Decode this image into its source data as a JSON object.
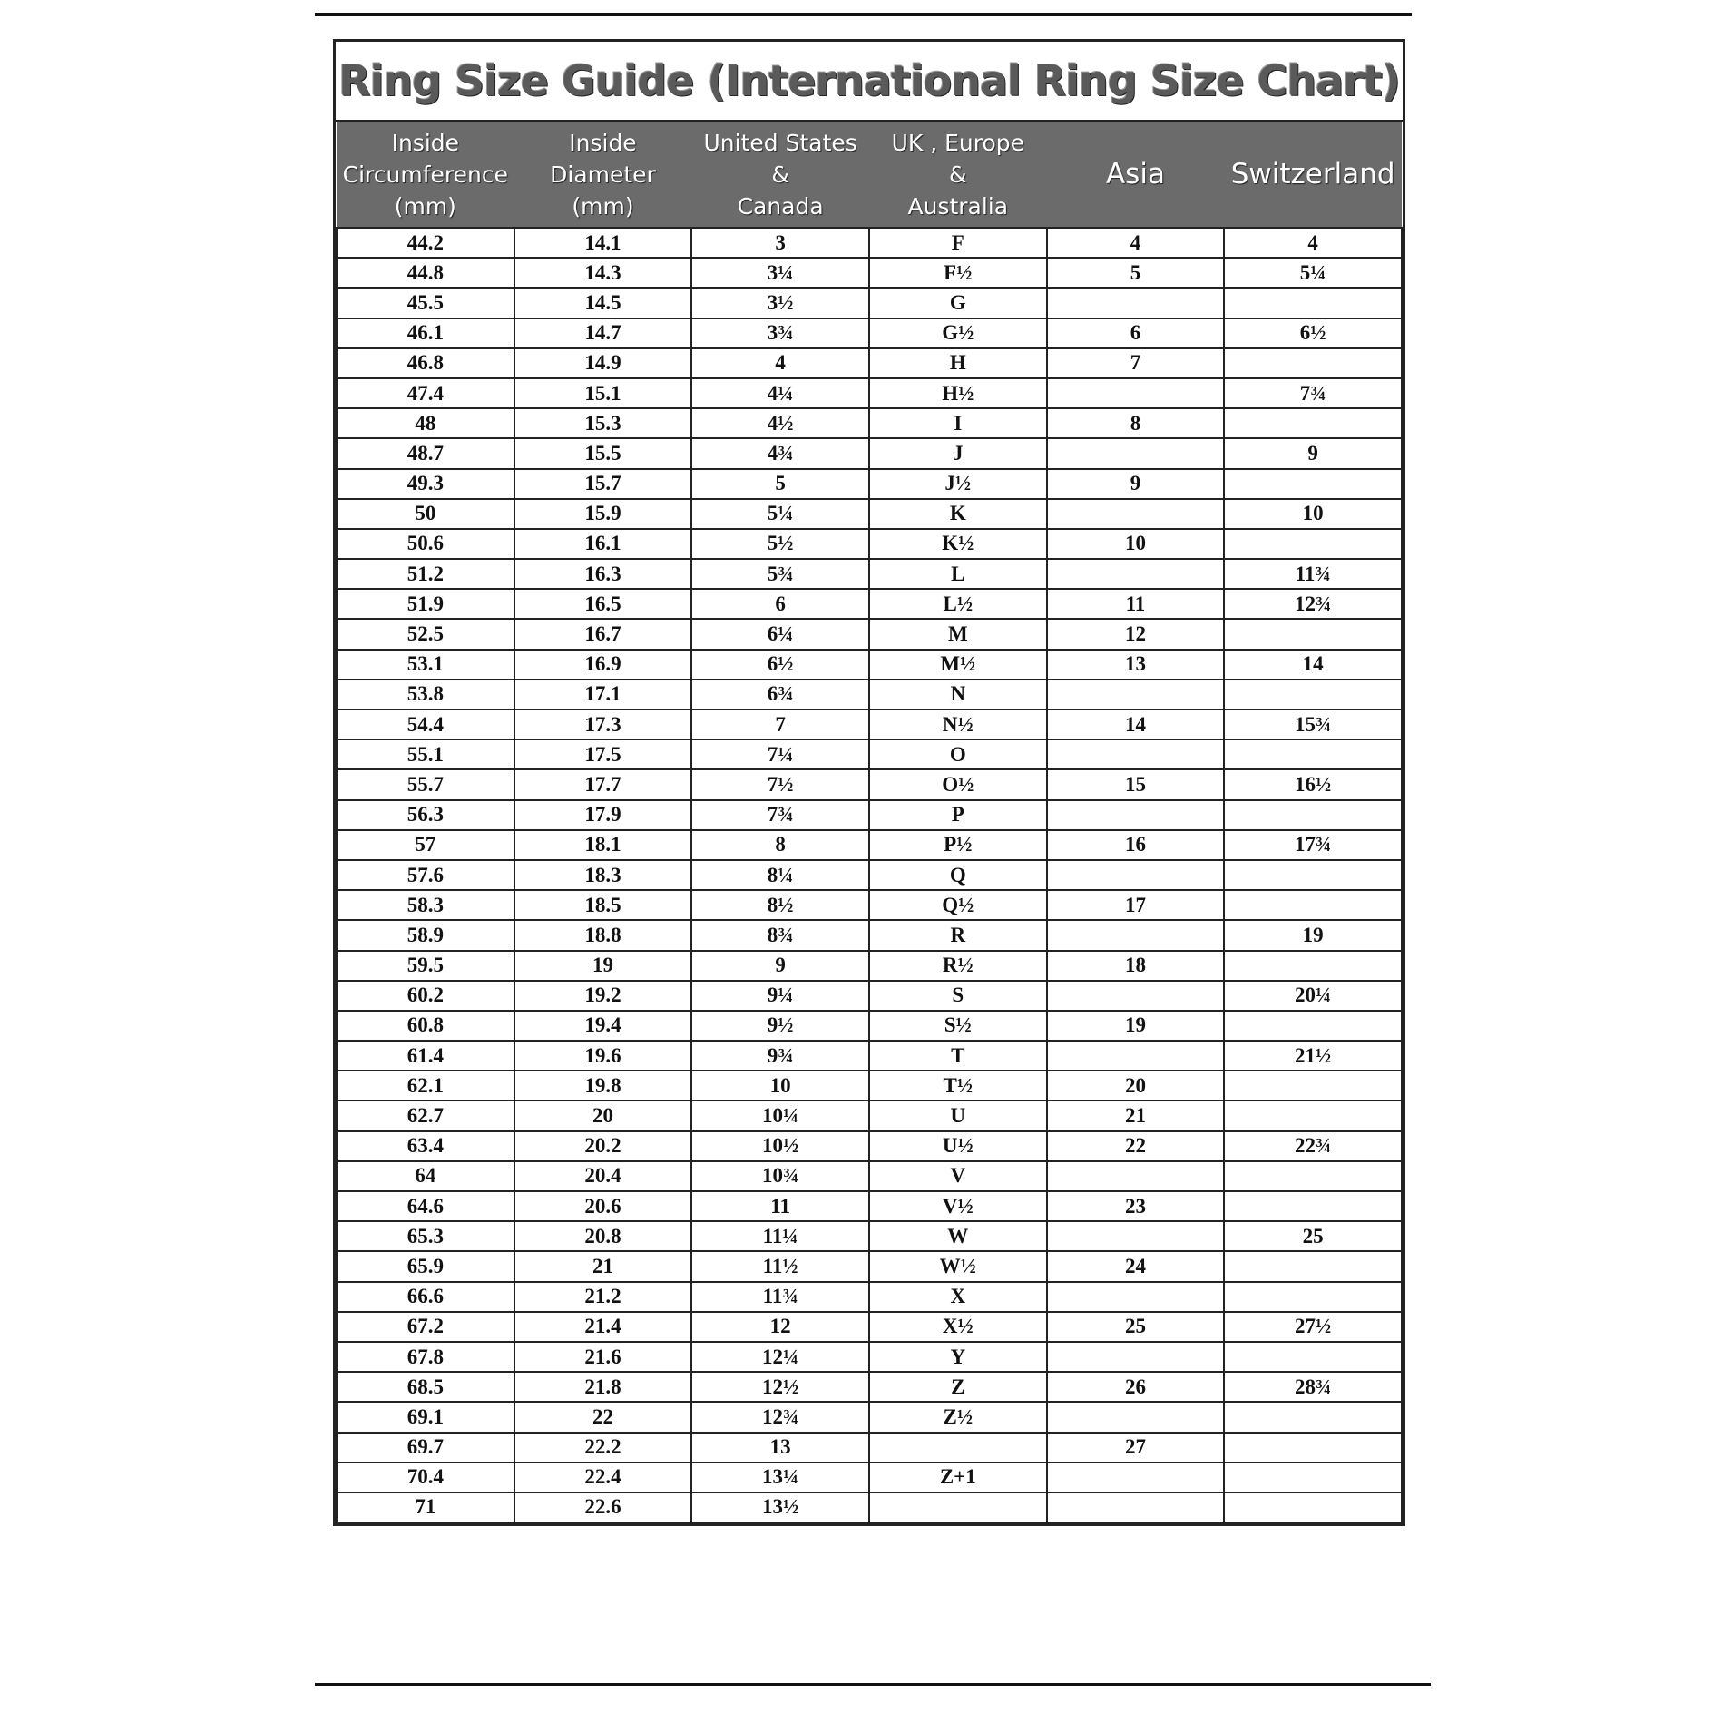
{
  "title": "Ring  Size  Guide (International Ring Size Chart)",
  "columns": [
    "Inside\nCircumference\n(mm)",
    "Inside\nDiameter\n(mm)",
    "United States\n&\nCanada",
    "UK , Europe\n&\nAustralia",
    "Asia",
    "Switzerland"
  ],
  "rows": [
    [
      "44.2",
      "14.1",
      "3",
      "F",
      "4",
      "4"
    ],
    [
      "44.8",
      "14.3",
      "3¼",
      "F½",
      "5",
      "5¼"
    ],
    [
      "45.5",
      "14.5",
      "3½",
      "G",
      "",
      ""
    ],
    [
      "46.1",
      "14.7",
      "3¾",
      "G½",
      "6",
      "6½"
    ],
    [
      "46.8",
      "14.9",
      "4",
      "H",
      "7",
      ""
    ],
    [
      "47.4",
      "15.1",
      "4¼",
      "H½",
      "",
      "7¾"
    ],
    [
      "48",
      "15.3",
      "4½",
      "I",
      "8",
      ""
    ],
    [
      "48.7",
      "15.5",
      "4¾",
      "J",
      "",
      "9"
    ],
    [
      "49.3",
      "15.7",
      "5",
      "J½",
      "9",
      ""
    ],
    [
      "50",
      "15.9",
      "5¼",
      "K",
      "",
      "10"
    ],
    [
      "50.6",
      "16.1",
      "5½",
      "K½",
      "10",
      ""
    ],
    [
      "51.2",
      "16.3",
      "5¾",
      "L",
      "",
      "11¾"
    ],
    [
      "51.9",
      "16.5",
      "6",
      "L½",
      "11",
      "12¾"
    ],
    [
      "52.5",
      "16.7",
      "6¼",
      "M",
      "12",
      ""
    ],
    [
      "53.1",
      "16.9",
      "6½",
      "M½",
      "13",
      "14"
    ],
    [
      "53.8",
      "17.1",
      "6¾",
      "N",
      "",
      ""
    ],
    [
      "54.4",
      "17.3",
      "7",
      "N½",
      "14",
      "15¾"
    ],
    [
      "55.1",
      "17.5",
      "7¼",
      "O",
      "",
      ""
    ],
    [
      "55.7",
      "17.7",
      "7½",
      "O½",
      "15",
      "16½"
    ],
    [
      "56.3",
      "17.9",
      "7¾",
      "P",
      "",
      ""
    ],
    [
      "57",
      "18.1",
      "8",
      "P½",
      "16",
      "17¾"
    ],
    [
      "57.6",
      "18.3",
      "8¼",
      "Q",
      "",
      ""
    ],
    [
      "58.3",
      "18.5",
      "8½",
      "Q½",
      "17",
      ""
    ],
    [
      "58.9",
      "18.8",
      "8¾",
      "R",
      "",
      "19"
    ],
    [
      "59.5",
      "19",
      "9",
      "R½",
      "18",
      ""
    ],
    [
      "60.2",
      "19.2",
      "9¼",
      "S",
      "",
      "20¼"
    ],
    [
      "60.8",
      "19.4",
      "9½",
      "S½",
      "19",
      ""
    ],
    [
      "61.4",
      "19.6",
      "9¾",
      "T",
      "",
      "21½"
    ],
    [
      "62.1",
      "19.8",
      "10",
      "T½",
      "20",
      ""
    ],
    [
      "62.7",
      "20",
      "10¼",
      "U",
      "21",
      ""
    ],
    [
      "63.4",
      "20.2",
      "10½",
      "U½",
      "22",
      "22¾"
    ],
    [
      "64",
      "20.4",
      "10¾",
      "V",
      "",
      ""
    ],
    [
      "64.6",
      "20.6",
      "11",
      "V½",
      "23",
      ""
    ],
    [
      "65.3",
      "20.8",
      "11¼",
      "W",
      "",
      "25"
    ],
    [
      "65.9",
      "21",
      "11½",
      "W½",
      "24",
      ""
    ],
    [
      "66.6",
      "21.2",
      "11¾",
      "X",
      "",
      ""
    ],
    [
      "67.2",
      "21.4",
      "12",
      "X½",
      "25",
      "27½"
    ],
    [
      "67.8",
      "21.6",
      "12¼",
      "Y",
      "",
      ""
    ],
    [
      "68.5",
      "21.8",
      "12½",
      "Z",
      "26",
      "28¾"
    ],
    [
      "69.1",
      "22",
      "12¾",
      "Z½",
      "",
      ""
    ],
    [
      "69.7",
      "22.2",
      "13",
      "",
      "27",
      ""
    ],
    [
      "70.4",
      "22.4",
      "13¼",
      "Z+1",
      "",
      ""
    ],
    [
      "71",
      "22.6",
      "13½",
      "",
      "",
      ""
    ]
  ],
  "colors": {
    "header_bg": "#6b6b6b",
    "header_text": "#ffffff",
    "border": "#222222"
  }
}
